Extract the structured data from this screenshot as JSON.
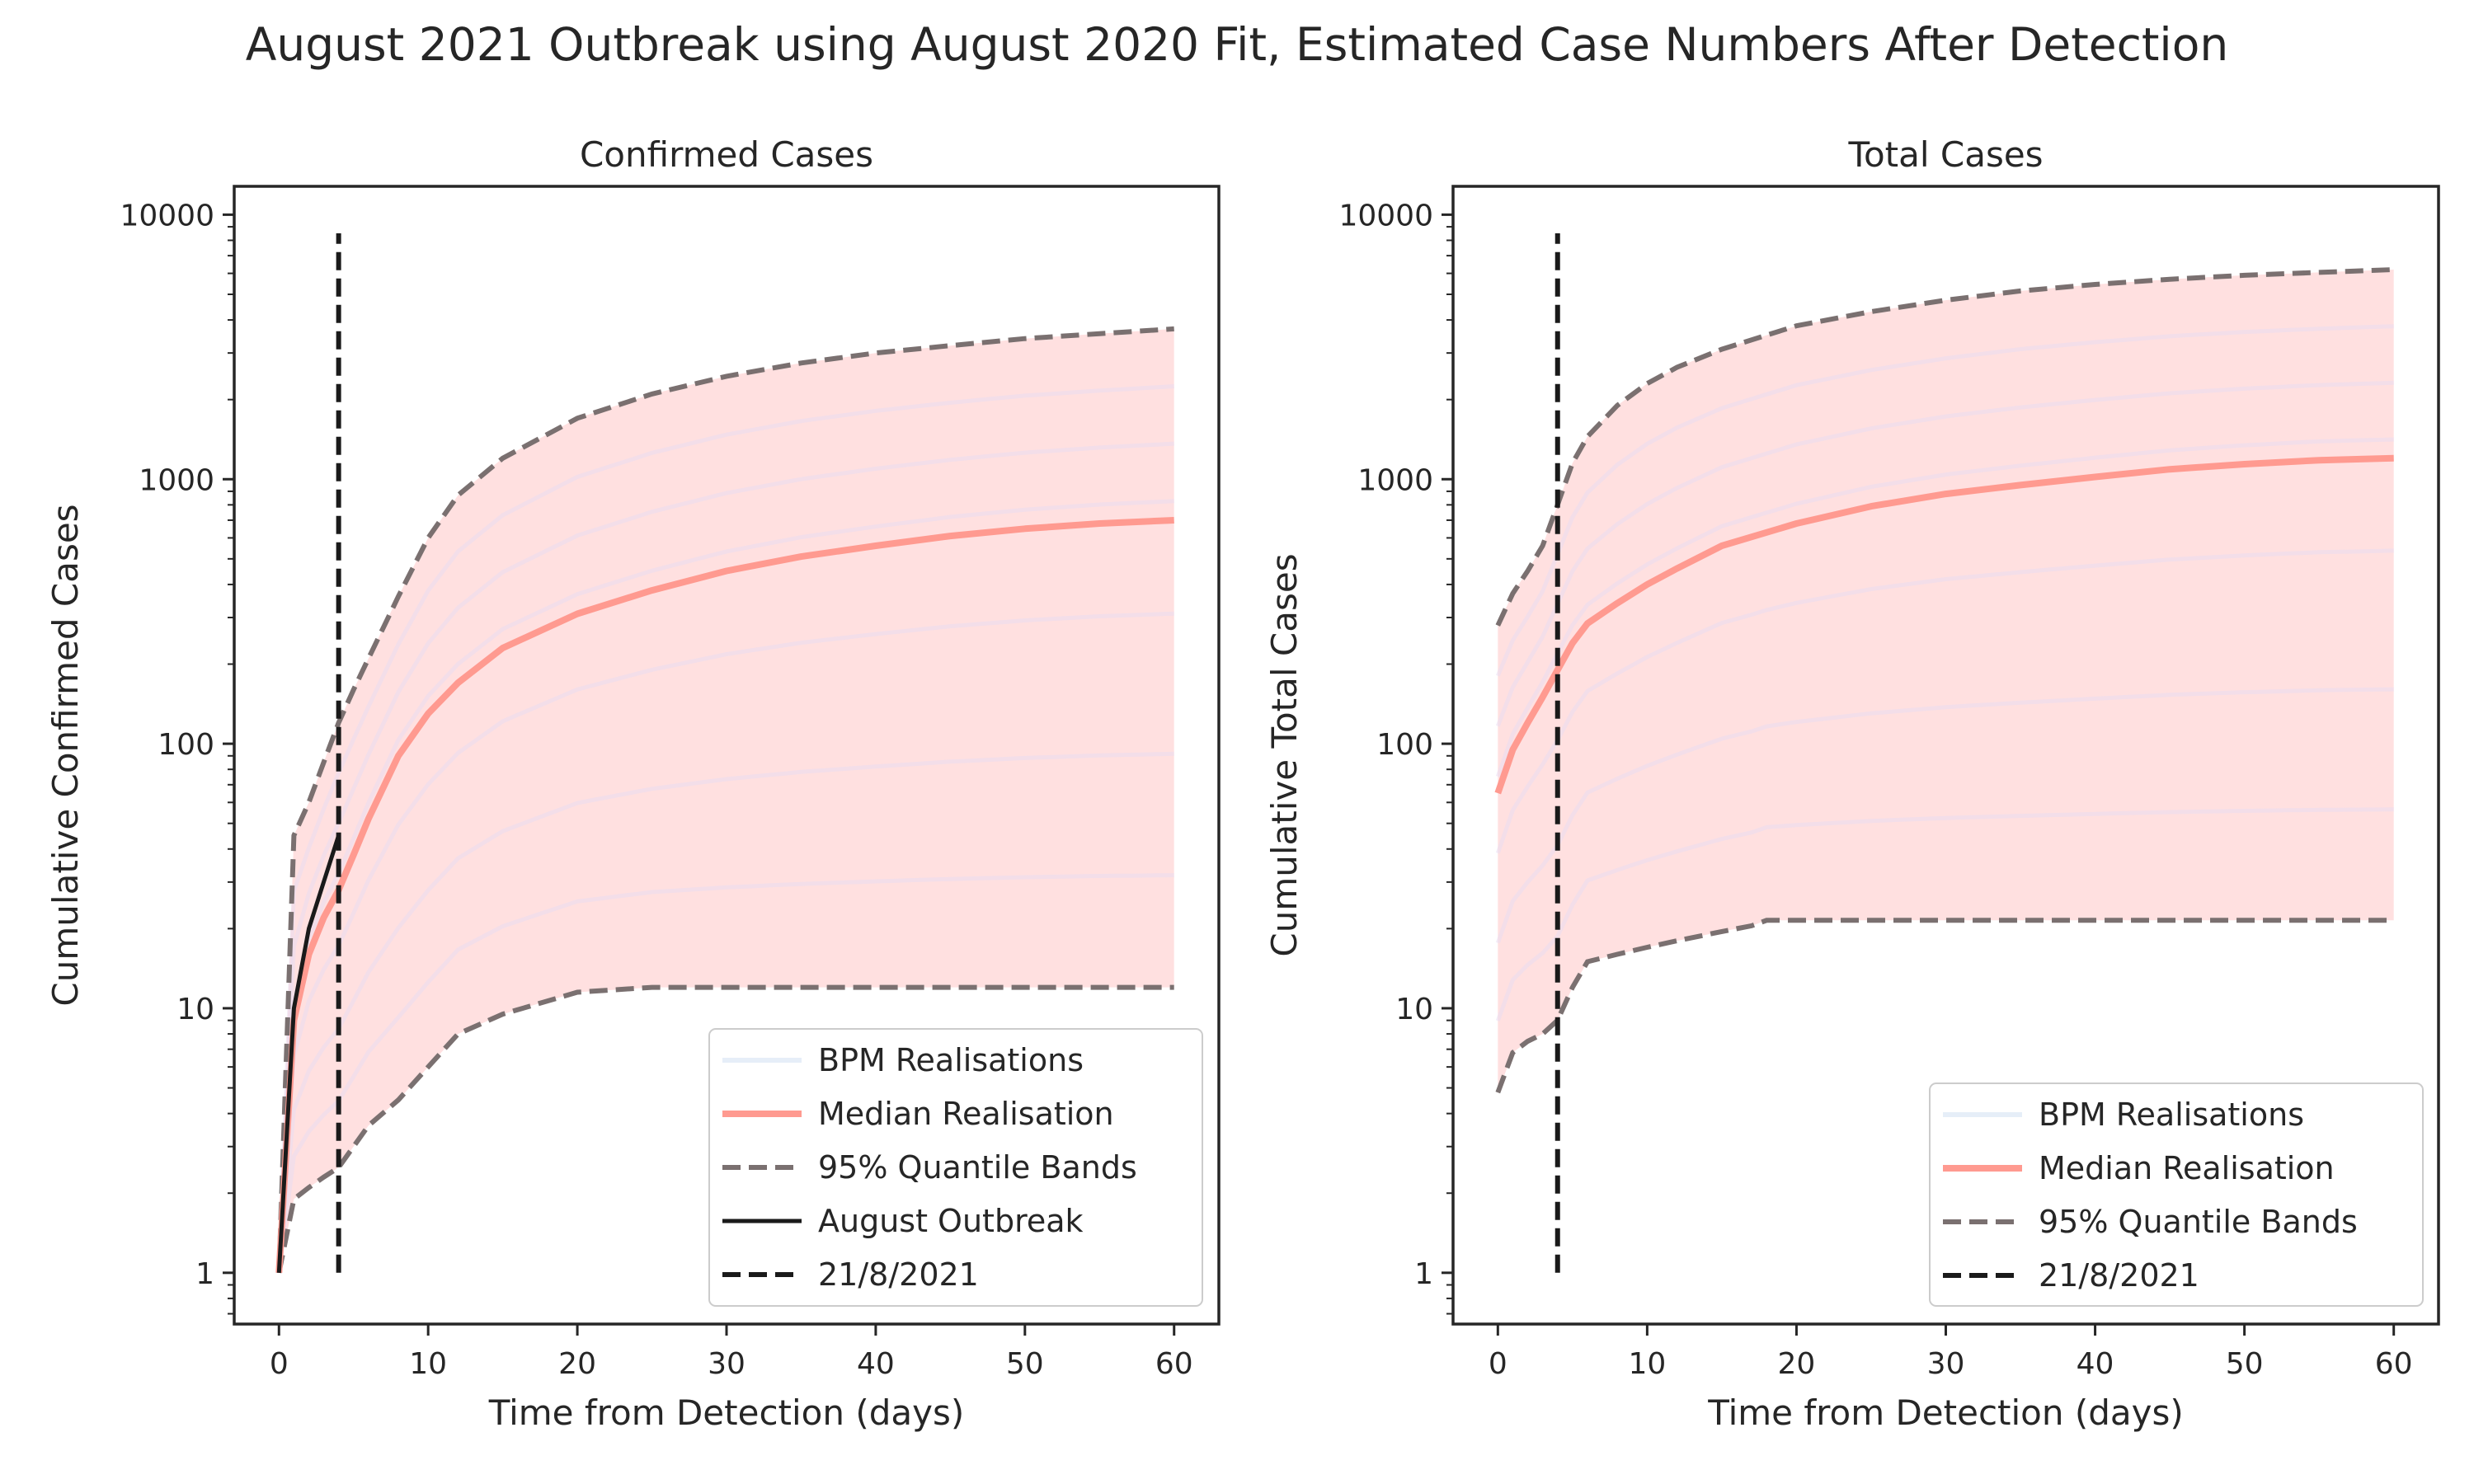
{
  "figure": {
    "title": "August 2021 Outbreak using August 2020 Fit, Estimated Case Numbers After Detection"
  },
  "colors": {
    "band_fill": "#ffe0e0",
    "realisation": "#e9ddf0",
    "median": "#ff9a90",
    "quantile": "#7a7070",
    "outbreak": "#1a1a1a",
    "marker": "#1a1a1a",
    "axis": "#262626"
  },
  "chart_data": [
    {
      "type": "line",
      "title": "Confirmed Cases",
      "xlabel": "Time from Detection (days)",
      "ylabel": "Cumulative Confirmed Cases",
      "xlim": [
        -3,
        63
      ],
      "ylim": [
        0.64,
        12800
      ],
      "yscale": "log",
      "xticks": [
        0,
        10,
        20,
        30,
        40,
        50,
        60
      ],
      "yticks": [
        1,
        10,
        100,
        1000,
        10000
      ],
      "ytick_labels": [
        "1",
        "10",
        "100",
        "1000",
        "10000"
      ],
      "grid": false,
      "legend_position": "lower-right",
      "legend": [
        "BPM Realisations",
        "Median Realisation",
        "95% Quantile Bands",
        "August Outbreak",
        "21/8/2021"
      ],
      "series": [
        {
          "name": "Median Realisation",
          "x": [
            0,
            1,
            2,
            3,
            4,
            5,
            6,
            8,
            10,
            12,
            15,
            20,
            25,
            30,
            35,
            40,
            45,
            50,
            55,
            60
          ],
          "values": [
            1,
            9,
            16,
            22,
            28,
            38,
            52,
            90,
            130,
            170,
            230,
            310,
            380,
            450,
            510,
            560,
            610,
            650,
            680,
            700
          ]
        },
        {
          "name": "95% Quantile Bands (upper)",
          "x": [
            0,
            1,
            2,
            3,
            4,
            5,
            6,
            8,
            10,
            12,
            15,
            20,
            25,
            30,
            35,
            40,
            45,
            50,
            55,
            60
          ],
          "values": [
            1,
            45,
            60,
            85,
            120,
            160,
            210,
            360,
            600,
            870,
            1200,
            1700,
            2100,
            2450,
            2750,
            3000,
            3200,
            3400,
            3550,
            3700
          ]
        },
        {
          "name": "95% Quantile Bands (lower)",
          "x": [
            0,
            1,
            2,
            3,
            4,
            5,
            6,
            8,
            10,
            12,
            15,
            20,
            25,
            30,
            35,
            40,
            45,
            50,
            55,
            60
          ],
          "values": [
            1,
            1.9,
            2.1,
            2.3,
            2.5,
            3.0,
            3.6,
            4.5,
            6.0,
            8.0,
            9.5,
            11.5,
            12.0,
            12.0,
            12.0,
            12.0,
            12.0,
            12.0,
            12.0,
            12.0
          ]
        },
        {
          "name": "August Outbreak",
          "x": [
            0,
            1,
            2,
            3,
            4
          ],
          "values": [
            1,
            10,
            20,
            30,
            45
          ]
        },
        {
          "name": "21/8/2021",
          "x": [
            4,
            4
          ],
          "values": [
            1,
            8500
          ]
        }
      ]
    },
    {
      "type": "line",
      "title": "Total Cases",
      "xlabel": "Time from Detection (days)",
      "ylabel": "Cumulative Total Cases",
      "xlim": [
        -3,
        63
      ],
      "ylim": [
        0.64,
        12800
      ],
      "yscale": "log",
      "xticks": [
        0,
        10,
        20,
        30,
        40,
        50,
        60
      ],
      "yticks": [
        1,
        10,
        100,
        1000,
        10000
      ],
      "ytick_labels": [
        "1",
        "10",
        "100",
        "1000",
        "10000"
      ],
      "grid": false,
      "legend_position": "lower-right",
      "legend": [
        "BPM Realisations",
        "Median Realisation",
        "95% Quantile Bands",
        "21/8/2021"
      ],
      "series": [
        {
          "name": "Median Realisation",
          "x": [
            0,
            1,
            2,
            3,
            4,
            5,
            6,
            8,
            10,
            12,
            15,
            20,
            25,
            30,
            35,
            40,
            45,
            50,
            55,
            60
          ],
          "values": [
            65,
            95,
            120,
            150,
            190,
            240,
            285,
            340,
            400,
            460,
            560,
            680,
            790,
            880,
            950,
            1020,
            1090,
            1140,
            1180,
            1200
          ]
        },
        {
          "name": "95% Quantile Bands (upper)",
          "x": [
            0,
            1,
            2,
            3,
            4,
            5,
            6,
            8,
            10,
            12,
            15,
            20,
            25,
            30,
            35,
            40,
            45,
            50,
            55,
            60
          ],
          "values": [
            280,
            370,
            450,
            560,
            800,
            1150,
            1450,
            1900,
            2300,
            2650,
            3100,
            3800,
            4300,
            4750,
            5150,
            5450,
            5700,
            5900,
            6050,
            6200
          ]
        },
        {
          "name": "95% Quantile Bands (lower)",
          "x": [
            0,
            1,
            2,
            3,
            4,
            5,
            6,
            8,
            10,
            12,
            15,
            17,
            18,
            20,
            25,
            30,
            40,
            50,
            60
          ],
          "values": [
            4.8,
            6.8,
            7.5,
            8.0,
            9.0,
            12.0,
            15.0,
            16.0,
            17.0,
            18.0,
            19.5,
            20.5,
            21.5,
            21.5,
            21.5,
            21.5,
            21.5,
            21.5,
            21.5
          ]
        },
        {
          "name": "21/8/2021",
          "x": [
            4,
            4
          ],
          "values": [
            1,
            8500
          ]
        }
      ]
    }
  ]
}
